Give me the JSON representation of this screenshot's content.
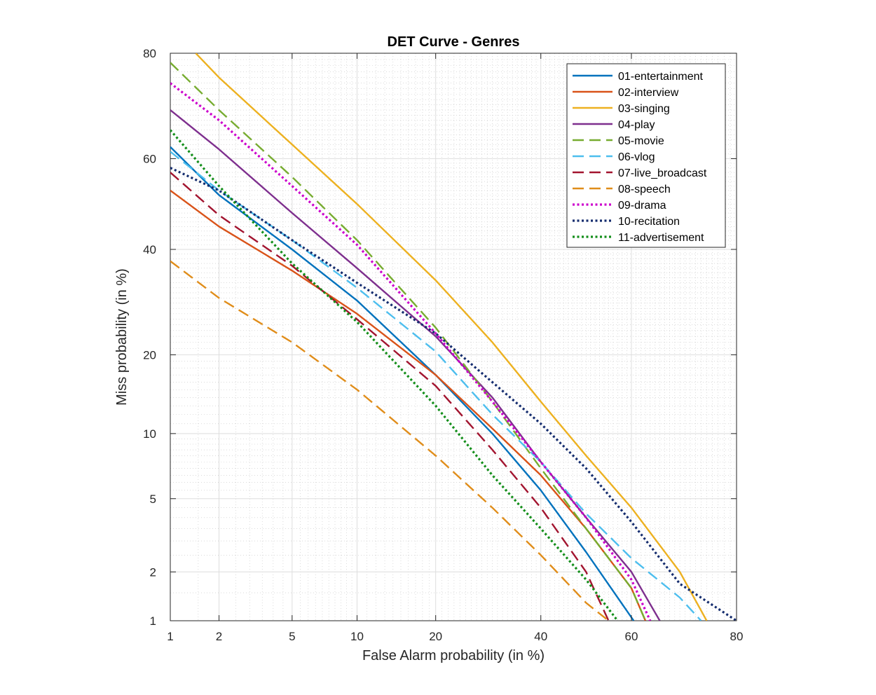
{
  "chart_data": {
    "type": "line",
    "title": "DET Curve - Genres",
    "xlabel": "False Alarm probability (in %)",
    "ylabel": "Miss probability (in %)",
    "scale": "normal-deviate (probit) on both axes",
    "xlim": [
      1,
      80
    ],
    "ylim": [
      1,
      80
    ],
    "xticks": [
      1,
      2,
      5,
      10,
      20,
      40,
      60,
      80
    ],
    "yticks": [
      1,
      2,
      5,
      10,
      20,
      40,
      60,
      80
    ],
    "grid": true,
    "legend_position": "top-right",
    "series": [
      {
        "name": "01-entertainment",
        "color": "#0072BD",
        "dash": "solid",
        "x": [
          1,
          2,
          5,
          10,
          20,
          30,
          40,
          50,
          60.5
        ],
        "y": [
          62.5,
          52,
          40,
          29.5,
          17,
          10,
          5.5,
          2.6,
          1
        ]
      },
      {
        "name": "02-interview",
        "color": "#D95319",
        "dash": "solid",
        "x": [
          1,
          2,
          5,
          10,
          20,
          30,
          40,
          50,
          60,
          63
        ],
        "y": [
          53,
          45,
          35.5,
          27,
          17,
          10.5,
          6.5,
          3.5,
          1.6,
          1
        ]
      },
      {
        "name": "03-singing",
        "color": "#EDB120",
        "dash": "solid",
        "x": [
          1.45,
          2,
          5,
          10,
          20,
          30,
          40,
          50,
          60,
          70,
          75
        ],
        "y": [
          80,
          76,
          63,
          50,
          33.5,
          22,
          13.5,
          8,
          4.5,
          2,
          1
        ]
      },
      {
        "name": "04-play",
        "color": "#7E2F8E",
        "dash": "solid",
        "x": [
          1,
          2,
          5,
          10,
          20,
          30,
          40,
          50,
          60,
          66
        ],
        "y": [
          70,
          62,
          48,
          36,
          23,
          14,
          7.5,
          4,
          2,
          1
        ]
      },
      {
        "name": "05-movie",
        "color": "#77AC30",
        "dash": "dashed",
        "x": [
          1,
          2,
          5,
          10,
          20,
          30,
          40,
          50,
          60,
          63
        ],
        "y": [
          78.5,
          70,
          56,
          42,
          24.5,
          13.5,
          7,
          3.5,
          1.6,
          1
        ]
      },
      {
        "name": "06-vlog",
        "color": "#4DBEEE",
        "dash": "dashed",
        "x": [
          1,
          2,
          5,
          10,
          20,
          30,
          40,
          50,
          60,
          70,
          74
        ],
        "y": [
          61.5,
          53,
          42,
          32,
          20.5,
          12,
          7.5,
          4.2,
          2.4,
          1.4,
          1
        ]
      },
      {
        "name": "07-live_broadcast",
        "color": "#A2142F",
        "dash": "dashed",
        "x": [
          1,
          2,
          5,
          10,
          20,
          30,
          40,
          50,
          55
        ],
        "y": [
          57,
          47.5,
          36.5,
          26,
          15.5,
          8.5,
          4.5,
          2,
          1
        ]
      },
      {
        "name": "08-speech",
        "color": "#E08D1A",
        "dash": "dashed",
        "x": [
          1,
          2,
          5,
          10,
          20,
          30,
          40,
          50,
          55
        ],
        "y": [
          37.5,
          30,
          22,
          15,
          8,
          4.5,
          2.5,
          1.3,
          1
        ]
      },
      {
        "name": "09-drama",
        "color": "#CC00CC",
        "dash": "dotted",
        "x": [
          1,
          2,
          5,
          10,
          20,
          30,
          40,
          50,
          60,
          64
        ],
        "y": [
          75,
          68,
          54,
          41,
          23.5,
          13.5,
          7.5,
          4,
          1.8,
          1
        ]
      },
      {
        "name": "10-recitation",
        "color": "#142C6E",
        "dash": "dotted",
        "x": [
          1,
          2,
          5,
          10,
          20,
          30,
          40,
          50,
          60,
          70,
          80
        ],
        "y": [
          58,
          53,
          42,
          33,
          23.5,
          16,
          11,
          7,
          3.8,
          1.7,
          1
        ]
      },
      {
        "name": "11-advertisement",
        "color": "#138E1A",
        "dash": "dotted",
        "x": [
          1,
          2,
          5,
          10,
          20,
          30,
          40,
          50,
          57
        ],
        "y": [
          66,
          54,
          37,
          25.5,
          13,
          6.5,
          3.5,
          1.8,
          1
        ]
      }
    ]
  }
}
